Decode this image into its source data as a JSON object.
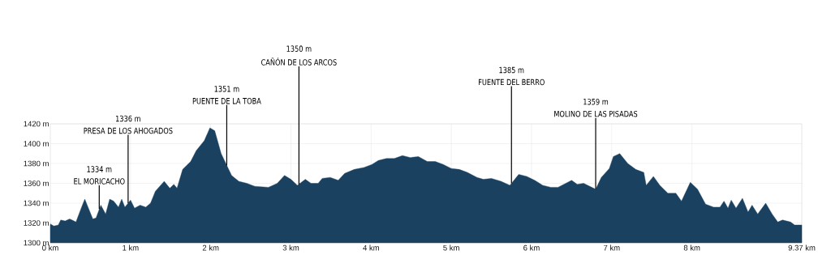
{
  "chart_data": {
    "type": "area",
    "color": "#1b4161",
    "x": [
      0,
      0.045,
      0.1,
      0.13,
      0.185,
      0.24,
      0.27,
      0.32,
      0.39,
      0.43,
      0.46,
      0.53,
      0.57,
      0.63,
      0.69,
      0.74,
      0.79,
      0.85,
      0.89,
      0.93,
      1.0,
      1.05,
      1.12,
      1.19,
      1.25,
      1.31,
      1.42,
      1.49,
      1.54,
      1.58,
      1.65,
      1.75,
      1.82,
      1.92,
      1.99,
      2.05,
      2.13,
      2.26,
      2.35,
      2.45,
      2.55,
      2.72,
      2.83,
      2.92,
      3.0,
      3.08,
      3.18,
      3.25,
      3.34,
      3.39,
      3.49,
      3.59,
      3.67,
      3.79,
      3.91,
      4.01,
      4.09,
      4.19,
      4.29,
      4.39,
      4.49,
      4.59,
      4.7,
      4.8,
      4.9,
      5.0,
      5.1,
      5.2,
      5.32,
      5.4,
      5.5,
      5.62,
      5.73,
      5.84,
      5.94,
      6.04,
      6.14,
      6.24,
      6.33,
      6.5,
      6.57,
      6.65,
      6.8,
      6.87,
      6.97,
      7.02,
      7.1,
      7.2,
      7.3,
      7.4,
      7.43,
      7.52,
      7.6,
      7.7,
      7.8,
      7.87,
      7.98,
      8.07,
      8.17,
      8.27,
      8.35,
      8.4,
      8.45,
      8.49,
      8.55,
      8.63,
      8.7,
      8.75,
      8.82,
      8.92,
      9.0,
      9.07,
      9.13,
      9.23,
      9.28,
      9.35,
      9.37
    ],
    "values": [
      1319,
      1317,
      1318,
      1323,
      1322,
      1324,
      1323,
      1321,
      1336,
      1344,
      1338,
      1324,
      1325,
      1338,
      1329,
      1344,
      1342,
      1336,
      1344,
      1336,
      1343,
      1335,
      1338,
      1336,
      1340,
      1352,
      1362,
      1355,
      1359,
      1355,
      1374,
      1382,
      1393,
      1403,
      1416,
      1413,
      1390,
      1368,
      1362,
      1360,
      1357,
      1356,
      1360,
      1368,
      1364,
      1358,
      1364,
      1360,
      1360,
      1365,
      1366,
      1363,
      1370,
      1374,
      1376,
      1379,
      1383,
      1385,
      1385,
      1388,
      1386,
      1387,
      1382,
      1382,
      1379,
      1375,
      1374,
      1371,
      1366,
      1364,
      1365,
      1362,
      1358,
      1369,
      1367,
      1363,
      1358,
      1356,
      1356,
      1363,
      1359,
      1360,
      1354,
      1366,
      1375,
      1387,
      1390,
      1380,
      1374,
      1371,
      1358,
      1367,
      1358,
      1350,
      1350,
      1342,
      1361,
      1354,
      1339,
      1336,
      1336,
      1342,
      1335,
      1343,
      1335,
      1345,
      1331,
      1338,
      1329,
      1340,
      1329,
      1321,
      1323,
      1321,
      1318,
      1318,
      1318
    ],
    "xlim": [
      0,
      9.37
    ],
    "ylim": [
      1300,
      1420
    ],
    "xticks": [
      {
        "value": 0,
        "label": "0 km"
      },
      {
        "value": 1,
        "label": "1 km"
      },
      {
        "value": 2,
        "label": "2 km"
      },
      {
        "value": 3,
        "label": "3 km"
      },
      {
        "value": 4,
        "label": "4 km"
      },
      {
        "value": 5,
        "label": "5 km"
      },
      {
        "value": 6,
        "label": "6 km"
      },
      {
        "value": 7,
        "label": "7 km"
      },
      {
        "value": 8,
        "label": "8 km"
      },
      {
        "value": 9.37,
        "label": "9.37 km"
      }
    ],
    "yticks": [
      {
        "value": 1300,
        "label": "1300 m"
      },
      {
        "value": 1320,
        "label": "1320 m"
      },
      {
        "value": 1340,
        "label": "1340 m"
      },
      {
        "value": 1360,
        "label": "1360 m"
      },
      {
        "value": 1380,
        "label": "1380 m"
      },
      {
        "value": 1400,
        "label": "1400 m"
      },
      {
        "value": 1420,
        "label": "1420 m"
      }
    ],
    "grid": true,
    "annotations": [
      "1334 m",
      {
        "text": "EL MORICACHO",
        "x": 0.61,
        "y": 1334
      },
      "1336 m",
      {
        "text": "PRESA DE LOS AHOGADOS",
        "x": 0.97,
        "y": 1340
      },
      "1351 m",
      {
        "text": "PUENTE DE LA TOBA",
        "x": 2.2,
        "y": 1378
      },
      "1350 m",
      {
        "text": "CAÑÓN DE LOS ARCOS",
        "x": 3.1,
        "y": 1359
      },
      "1385 m",
      {
        "text": "FUENTE DEL BERRO",
        "x": 5.75,
        "y": 1360
      },
      "1359 m",
      {
        "text": "MOLINO DE LAS PISADAS",
        "x": 6.8,
        "y": 1354
      }
    ]
  }
}
